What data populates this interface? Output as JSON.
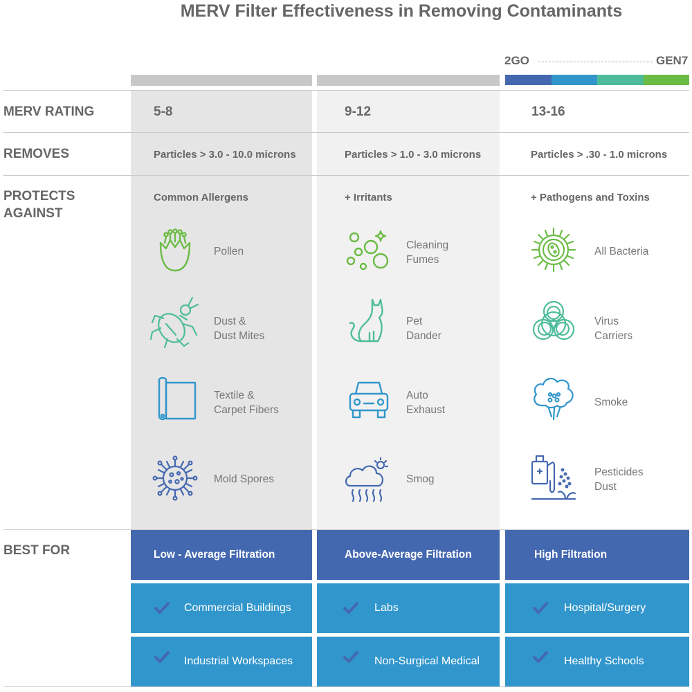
{
  "title": "MERV Filter Effectiveness in Removing Contaminants",
  "gen_scale": {
    "left_label": "2GO",
    "right_label": "GEN7",
    "colors": [
      "#4468b0",
      "#3196cc",
      "#4ebc9a",
      "#6cbb45"
    ]
  },
  "row_labels": {
    "merv": "MERV RATING",
    "removes": "REMOVES",
    "protects_line1": "PROTECTS",
    "protects_line2": "AGAINST",
    "best_for": "BEST FOR"
  },
  "columns": [
    {
      "merv": "5-8",
      "removes": "Particles > 3.0 - 10.0 microns",
      "protects": "Common Allergens",
      "items": [
        {
          "icon": "pollen-icon",
          "label": "Pollen"
        },
        {
          "icon": "dust-mite-icon",
          "label": "Dust &\nDust Mites"
        },
        {
          "icon": "carpet-roll-icon",
          "label": "Textile &\nCarpet Fibers"
        },
        {
          "icon": "mold-spore-icon",
          "label": "Mold Spores"
        }
      ],
      "best_for": "Low - Average Filtration",
      "uses": [
        "Commercial Buildings",
        "Industrial Workspaces"
      ]
    },
    {
      "merv": "9-12",
      "removes": "Particles > 1.0 - 3.0 microns",
      "protects": "+ Irritants",
      "items": [
        {
          "icon": "bubbles-icon",
          "label": "Cleaning\nFumes"
        },
        {
          "icon": "cat-icon",
          "label": "Pet\nDander"
        },
        {
          "icon": "car-icon",
          "label": "Auto\nExhaust"
        },
        {
          "icon": "smog-cloud-icon",
          "label": "Smog"
        }
      ],
      "best_for": "Above-Average Filtration",
      "uses": [
        "Labs",
        "Non-Surgical Medical"
      ]
    },
    {
      "merv": "13-16",
      "removes": "Particles > .30 - 1.0 microns",
      "protects": "+ Pathogens and Toxins",
      "items": [
        {
          "icon": "bacteria-icon",
          "label": "All Bacteria"
        },
        {
          "icon": "biohazard-icon",
          "label": "Virus\nCarriers"
        },
        {
          "icon": "smoke-icon",
          "label": "Smoke"
        },
        {
          "icon": "pesticide-sprayer-icon",
          "label": "Pesticides\nDust"
        }
      ],
      "best_for": "High Filtration",
      "uses": [
        "Hospital/Surgery",
        "Healthy Schools"
      ]
    }
  ]
}
